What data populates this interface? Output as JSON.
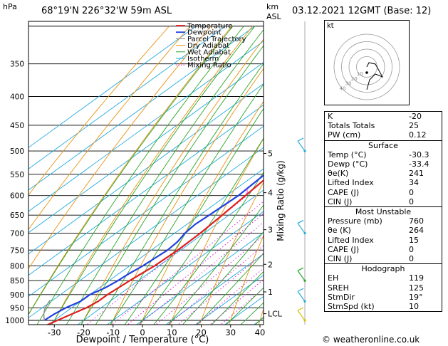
{
  "header": {
    "pressure_unit": "hPa",
    "location": "68°19'N  226°32'W  59m  ASL",
    "alt_unit_top": "km",
    "alt_unit_bottom": "ASL",
    "datetime": "03.12.2021  12GMT  (Base: 12)"
  },
  "chart_data": {
    "type": "line",
    "xlabel": "Dewpoint / Temperature (°C)",
    "mixing_axis_label": "Mixing Ratio (g/kg)",
    "x_ticks": [
      -30,
      -20,
      -10,
      0,
      10,
      20,
      30,
      40
    ],
    "xlim": [
      -40,
      40
    ],
    "pressure_levels": [
      300,
      350,
      400,
      450,
      500,
      550,
      600,
      650,
      700,
      750,
      800,
      850,
      900,
      950,
      1000
    ],
    "pressure_labels": [
      "",
      "350",
      "400",
      "450",
      "500",
      "550",
      "600",
      "650",
      "700",
      "750",
      "800",
      "850",
      "900",
      "950",
      "1000"
    ],
    "ylim": [
      300,
      1050
    ],
    "km_ticks": [
      {
        "p": 505,
        "label": "5"
      },
      {
        "p": 593,
        "label": "4"
      },
      {
        "p": 690,
        "label": "3"
      },
      {
        "p": 795,
        "label": "2"
      },
      {
        "p": 890,
        "label": "1"
      },
      {
        "p": 973,
        "label": "LCL"
      }
    ],
    "mixing_ratios": [
      1,
      2,
      3,
      4,
      6,
      8,
      10,
      15,
      20,
      25
    ],
    "mixing_labels": [
      "1",
      "2",
      "3",
      "4",
      "6",
      "8",
      "10",
      "15",
      "20",
      "25"
    ],
    "legend": [
      "Temperature",
      "Dewpoint",
      "Parcel Trajectory",
      "Dry Adiabat",
      "Wet Adiabat",
      "Isotherm",
      "Mixing Ratio"
    ],
    "legend_position": "top-right",
    "series": [
      {
        "name": "Temperature",
        "color": "#e02020",
        "points": [
          [
            1020,
            -30.3
          ],
          [
            1000,
            -29
          ],
          [
            975,
            -27
          ],
          [
            950,
            -25
          ],
          [
            925,
            -24
          ],
          [
            900,
            -24
          ],
          [
            875,
            -23.5
          ],
          [
            850,
            -23
          ],
          [
            825,
            -22.3
          ],
          [
            800,
            -21.5
          ],
          [
            750,
            -21
          ],
          [
            700,
            -21.3
          ],
          [
            650,
            -22.3
          ],
          [
            600,
            -23.6
          ],
          [
            550,
            -25
          ],
          [
            500,
            -27.8
          ],
          [
            470,
            -29.8
          ]
        ]
      },
      {
        "name": "Dewpoint",
        "color": "#2040e0",
        "points": [
          [
            1000,
            -33.4
          ],
          [
            975,
            -33
          ],
          [
            950,
            -32
          ],
          [
            925,
            -30
          ],
          [
            900,
            -30
          ],
          [
            875,
            -28
          ],
          [
            850,
            -27
          ],
          [
            825,
            -26.5
          ],
          [
            800,
            -25.5
          ],
          [
            775,
            -25
          ],
          [
            750,
            -24.5
          ],
          [
            725,
            -25
          ],
          [
            700,
            -26.5
          ],
          [
            675,
            -27.2
          ],
          [
            650,
            -26.7
          ],
          [
            600,
            -26
          ],
          [
            550,
            -27
          ],
          [
            500,
            -29.5
          ],
          [
            485,
            -30.4
          ]
        ]
      },
      {
        "name": "Parcel Trajectory",
        "color": "#909090",
        "points": [
          [
            1000,
            -33.4
          ],
          [
            975,
            -36.5
          ],
          [
            950,
            -39
          ],
          [
            920,
            -41
          ]
        ]
      }
    ],
    "dry_adiabat_thetas": [
      -70,
      -60,
      -50,
      -40,
      -30,
      -20,
      -10,
      0,
      10,
      20,
      30,
      40,
      50,
      60,
      70,
      80,
      90,
      100,
      110,
      120,
      130
    ],
    "wet_adiabat_starts": [
      -40,
      -35,
      -30,
      -25,
      -20,
      -15,
      -10,
      -5,
      0,
      5,
      10,
      15,
      20,
      25,
      30,
      35,
      40,
      45,
      50,
      55
    ],
    "colors": {
      "dry": "#e8920f",
      "wet": "#2aa52a",
      "isotherm": "#22aadd",
      "mixing": "#e020e0",
      "wind": "#22aadd"
    }
  },
  "hodograph": {
    "unit_label": "kt",
    "ring_labels": [
      "40",
      "30",
      "20",
      "10"
    ]
  },
  "indices": [
    {
      "label": "K",
      "value": "-20"
    },
    {
      "label": "Totals Totals",
      "value": "25"
    },
    {
      "label": "PW (cm)",
      "value": "0.12"
    }
  ],
  "surface": {
    "title": "Surface",
    "rows": [
      {
        "label": "Temp (°C)",
        "value": "-30.3"
      },
      {
        "label": "Dewp (°C)",
        "value": "-33.4"
      },
      {
        "label": "θe(K)",
        "value": "241"
      },
      {
        "label": "Lifted Index",
        "value": "34"
      },
      {
        "label": "CAPE (J)",
        "value": "0"
      },
      {
        "label": "CIN (J)",
        "value": "0"
      }
    ]
  },
  "most_unstable": {
    "title": "Most Unstable",
    "rows": [
      {
        "label": "Pressure (mb)",
        "value": "760"
      },
      {
        "label": "θe (K)",
        "value": "264"
      },
      {
        "label": "Lifted Index",
        "value": "15"
      },
      {
        "label": "CAPE (J)",
        "value": "0"
      },
      {
        "label": "CIN (J)",
        "value": "0"
      }
    ]
  },
  "hodograph_params": {
    "title": "Hodograph",
    "rows": [
      {
        "label": "EH",
        "value": "119"
      },
      {
        "label": "SREH",
        "value": "125"
      },
      {
        "label": "StmDir",
        "value": "19°"
      },
      {
        "label": "StmSpd (kt)",
        "value": "10"
      }
    ]
  },
  "footer": {
    "copyright": "© weatheronline.co.uk"
  }
}
